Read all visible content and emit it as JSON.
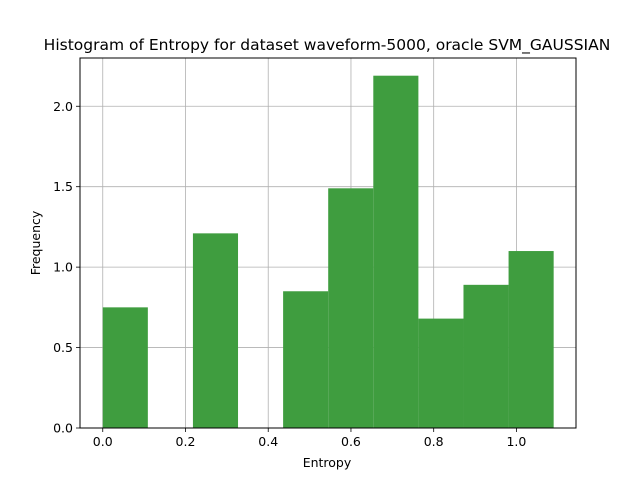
{
  "chart_data": {
    "type": "bar",
    "title": "Histogram of Entropy for dataset waveform-5000, oracle SVM_GAUSSIAN",
    "xlabel": "Entropy",
    "ylabel": "Frequency",
    "xlim": [
      -0.055,
      1.144
    ],
    "ylim": [
      0,
      2.3
    ],
    "grid": true,
    "bar_color": "#3f9d3f",
    "grid_color": "#b0b0b0",
    "bins": [
      {
        "x0": 0.0,
        "x1": 0.109,
        "value": 0.75
      },
      {
        "x0": 0.109,
        "x1": 0.218,
        "value": 0.0
      },
      {
        "x0": 0.218,
        "x1": 0.327,
        "value": 1.21
      },
      {
        "x0": 0.327,
        "x1": 0.436,
        "value": 0.0
      },
      {
        "x0": 0.436,
        "x1": 0.545,
        "value": 0.85
      },
      {
        "x0": 0.545,
        "x1": 0.654,
        "value": 1.49
      },
      {
        "x0": 0.654,
        "x1": 0.763,
        "value": 2.19
      },
      {
        "x0": 0.763,
        "x1": 0.872,
        "value": 0.68
      },
      {
        "x0": 0.872,
        "x1": 0.981,
        "value": 0.89
      },
      {
        "x0": 0.981,
        "x1": 1.09,
        "value": 1.1
      }
    ],
    "xticks": [
      {
        "value": 0.0,
        "label": "0.0"
      },
      {
        "value": 0.2,
        "label": "0.2"
      },
      {
        "value": 0.4,
        "label": "0.4"
      },
      {
        "value": 0.6,
        "label": "0.6"
      },
      {
        "value": 0.8,
        "label": "0.8"
      },
      {
        "value": 1.0,
        "label": "1.0"
      }
    ],
    "yticks": [
      {
        "value": 0.0,
        "label": "0.0"
      },
      {
        "value": 0.5,
        "label": "0.5"
      },
      {
        "value": 1.0,
        "label": "1.0"
      },
      {
        "value": 1.5,
        "label": "1.5"
      },
      {
        "value": 2.0,
        "label": "2.0"
      }
    ]
  }
}
